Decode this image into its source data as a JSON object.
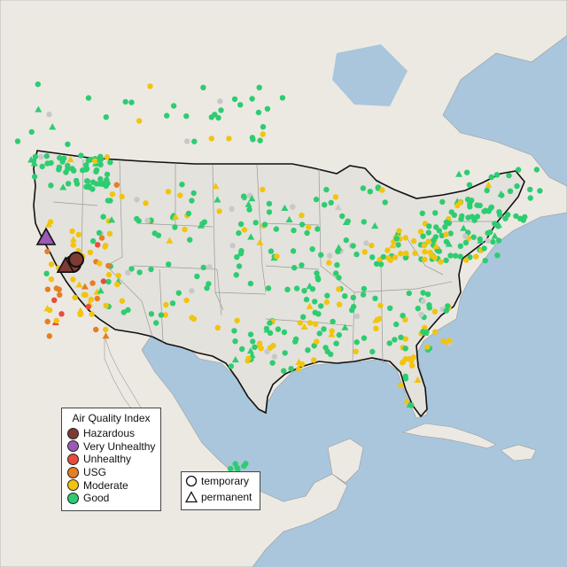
{
  "legend_aqi": {
    "title": "Air Quality Index",
    "items": [
      {
        "label": "Hazardous",
        "color": "#7e3b33"
      },
      {
        "label": "Very Unhealthy",
        "color": "#9b5ab3"
      },
      {
        "label": "Unhealthy",
        "color": "#e74c3c"
      },
      {
        "label": "USG",
        "color": "#e67e22"
      },
      {
        "label": "Moderate",
        "color": "#f1c40f"
      },
      {
        "label": "Good",
        "color": "#2ecc71"
      }
    ]
  },
  "legend_monitor": {
    "temporary_label": "temporary",
    "permanent_label": "permanent"
  },
  "map_colors": {
    "ocean": "#a9c6dc",
    "land": "#ece9e3",
    "us_land": "#e4e2dc",
    "no_data": "#c8c8c8"
  }
}
